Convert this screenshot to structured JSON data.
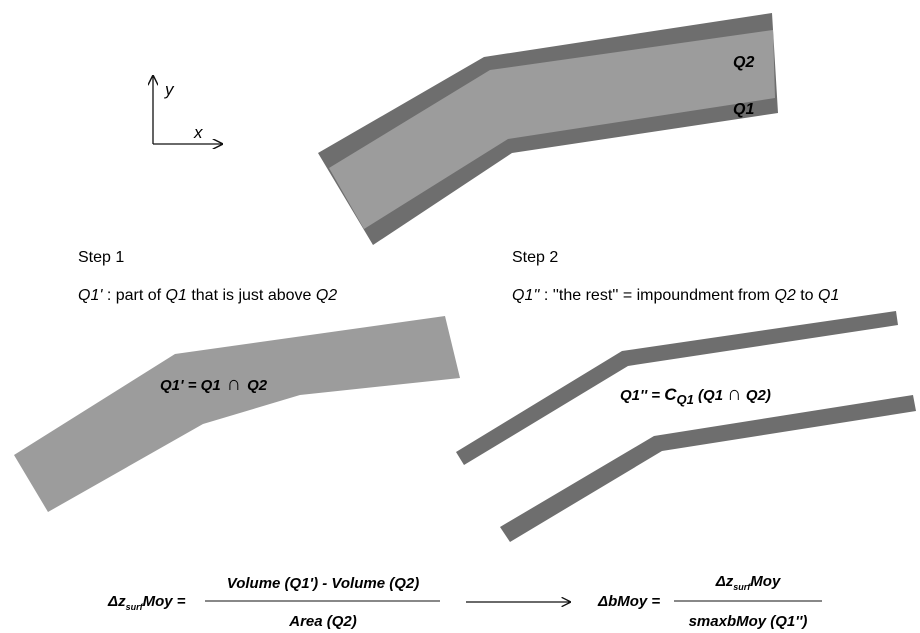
{
  "axes": {
    "y_label": "y",
    "x_label": "x"
  },
  "top_diagram": {
    "label_q2": "Q2",
    "label_q1": "Q1"
  },
  "step1": {
    "title": "Step 1",
    "desc_var": "Q1'",
    "desc_mid": " : part of ",
    "desc_q1": "Q1",
    "desc_end": " that is just above ",
    "desc_q2": "Q2",
    "shape_label_lhs": "Q1' = Q1",
    "shape_label_op": "∩",
    "shape_label_rhs": "Q2"
  },
  "step2": {
    "title": "Step 2",
    "desc_var": "Q1''",
    "desc_mid": " : ''the rest'' = impoundment from ",
    "desc_q2": "Q2",
    "desc_to": " to ",
    "desc_q1": "Q1",
    "shape_label_lhs": "Q1'' = ",
    "shape_label_c": "C",
    "shape_label_sub": "Q1",
    "shape_label_paren": " (Q1 ",
    "shape_label_op": "∩",
    "shape_label_rhs": " Q2)"
  },
  "formula1": {
    "lhs_delta": "Δz",
    "lhs_sub": "surf",
    "lhs_rest": "Moy =",
    "numerator": "Volume (Q1') - Volume (Q2)",
    "denominator": "Area (Q2)"
  },
  "formula2": {
    "lhs": "ΔbMoy =",
    "num_delta": "Δz",
    "num_sub": "surf",
    "num_rest": "Moy",
    "denominator": "smaxbMoy (Q1'')"
  },
  "colors": {
    "dark_band": "#6e6e6e",
    "light_fill": "#9c9c9c"
  }
}
